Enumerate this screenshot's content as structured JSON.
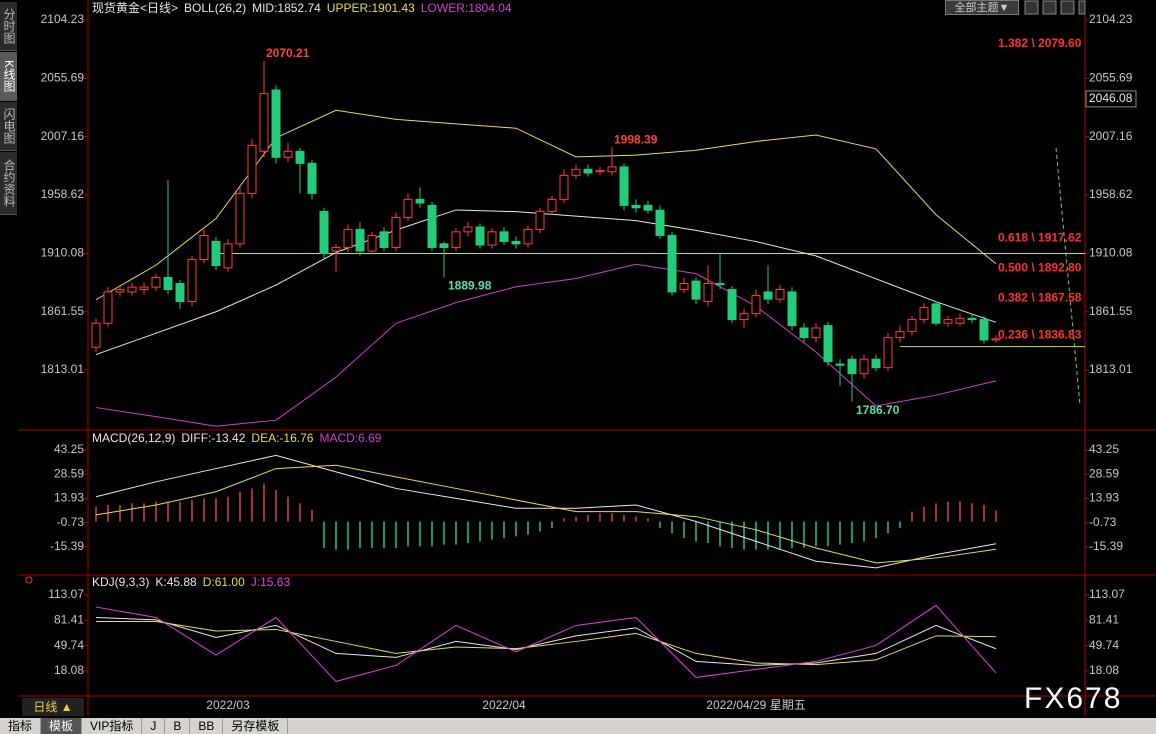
{
  "ui": {
    "sidebar": [
      "分时图",
      "K线图",
      "闪电图",
      "合约资料"
    ],
    "theme_button": "全部主题▼",
    "period": "日线 ▲",
    "tabs": [
      "指标",
      "模板",
      "VIP指标",
      "J",
      "B",
      "BB",
      "另存模板"
    ],
    "watermark": "FX678"
  },
  "chart_data": [
    {
      "type": "candlestick",
      "title": "现货黄金<日线>",
      "subtitle": "BOLL(26,2)",
      "categories": [
        null,
        null,
        null,
        null,
        null,
        null,
        null,
        null,
        null,
        null,
        null,
        "2022/03",
        null,
        null,
        null,
        null,
        null,
        null,
        null,
        null,
        null,
        null,
        null,
        null,
        null,
        null,
        null,
        null,
        null,
        null,
        null,
        null,
        null,
        null,
        "2022/04",
        null,
        null,
        null,
        null,
        null,
        null,
        null,
        null,
        null,
        null,
        null,
        null,
        null,
        null,
        null,
        null,
        null,
        null,
        null,
        null,
        "2022/04/29 星期五",
        null,
        null,
        null,
        null,
        null,
        null,
        null,
        null,
        null,
        null,
        null,
        null,
        null,
        null,
        null,
        null,
        null,
        null,
        null,
        null
      ],
      "open": [
        1832,
        1852,
        1878,
        1878,
        1880,
        1882,
        1890,
        1885,
        1870,
        1905,
        1920,
        1898,
        1918,
        1960,
        1995,
        2046,
        1990,
        1995,
        1985,
        1945,
        1912,
        1915,
        1930,
        1912,
        1928,
        1915,
        1940,
        1955,
        1950,
        1918,
        1915,
        1928,
        1932,
        1917,
        1928,
        1920,
        1918,
        1930,
        1945,
        1955,
        1975,
        1980,
        1978,
        1978,
        1982,
        1950,
        1950,
        1946,
        1925,
        1880,
        1887,
        1870,
        1885,
        1880,
        1855,
        1860,
        1878,
        1872,
        1878,
        1848,
        1840,
        1850,
        1818,
        1822,
        1810,
        1822,
        1815,
        1840,
        1845,
        1855,
        1868,
        1852,
        1852,
        1856,
        1855,
        1838
      ],
      "high": [
        1856,
        1882,
        1884,
        1886,
        1886,
        1893,
        1971,
        1888,
        1908,
        1930,
        1924,
        1922,
        1965,
        2005,
        2070.21,
        2050,
        2002,
        1998,
        1988,
        1948,
        1918,
        1934,
        1936,
        1928,
        1932,
        1944,
        1960,
        1965,
        1953,
        1920,
        1931,
        1936,
        1935,
        1931,
        1932,
        1924,
        1933,
        1948,
        1958,
        1980,
        1984,
        1984,
        1982,
        1998.39,
        1985,
        1955,
        1954,
        1950,
        1928,
        1890,
        1890,
        1900,
        1910,
        1883,
        1864,
        1880,
        1900,
        1884,
        1882,
        1852,
        1852,
        1853,
        1822,
        1825,
        1826,
        1826,
        1844,
        1850,
        1858,
        1869,
        1870,
        1858,
        1860,
        1860,
        1858,
        1842
      ],
      "low": [
        1828,
        1849,
        1874,
        1875,
        1876,
        1879,
        1876,
        1864,
        1866,
        1902,
        1896,
        1895,
        1915,
        1956,
        1990,
        1985,
        1986,
        1960,
        1955,
        1906,
        1895,
        1911,
        1908,
        1909,
        1912,
        1912,
        1937,
        1948,
        1912,
        1889.98,
        1912,
        1924,
        1914,
        1914,
        1917,
        1914,
        1915,
        1927,
        1942,
        1952,
        1972,
        1974,
        1975,
        1975,
        1946,
        1944,
        1943,
        1922,
        1875,
        1877,
        1868,
        1866,
        1880,
        1852,
        1848,
        1857,
        1868,
        1869,
        1846,
        1836,
        1836,
        1816,
        1800,
        1786.7,
        1806,
        1812,
        1812,
        1836,
        1842,
        1852,
        1850,
        1849,
        1850,
        1852,
        1835,
        1836
      ],
      "close": [
        1852,
        1878,
        1880,
        1882,
        1882,
        1890,
        1880,
        1870,
        1905,
        1925,
        1900,
        1918,
        1960,
        2000,
        2043,
        1990,
        1995,
        1985,
        1960,
        1910,
        1915,
        1930,
        1912,
        1925,
        1915,
        1940,
        1955,
        1952,
        1915,
        1915,
        1928,
        1932,
        1917,
        1928,
        1920,
        1918,
        1930,
        1945,
        1955,
        1975,
        1980,
        1977,
        1979,
        1982,
        1950,
        1948,
        1946,
        1925,
        1878,
        1885,
        1872,
        1885,
        1884,
        1855,
        1860,
        1875,
        1872,
        1880,
        1850,
        1840,
        1848,
        1820,
        1817,
        1810,
        1822,
        1815,
        1840,
        1845,
        1855,
        1865,
        1852,
        1855,
        1856,
        1855,
        1838,
        1839
      ],
      "up_color": "#ff3c3c",
      "down_color": "#22cc7a",
      "series": [
        {
          "name": "MID:1852.74",
          "color": "#e8e8e8",
          "x": [
            0,
            5,
            10,
            15,
            20,
            25,
            30,
            35,
            40,
            45,
            50,
            55,
            60,
            65,
            70,
            75
          ],
          "values": [
            1825.9,
            1843.7,
            1861.5,
            1883.7,
            1910.8,
            1929.5,
            1946.2,
            1944.8,
            1941.1,
            1937.3,
            1929.2,
            1919.9,
            1908.0,
            1888.9,
            1869.9,
            1852.74
          ]
        },
        {
          "name": "UPPER:1901.43",
          "color": "#e0e050",
          "x": [
            0,
            5,
            10,
            15,
            20,
            25,
            30,
            35,
            40,
            45,
            50,
            55,
            60,
            65,
            70,
            75
          ],
          "values": [
            1871.5,
            1900.3,
            1939.1,
            2006.2,
            2029.1,
            2021.6,
            2017.8,
            2014.2,
            1990.4,
            1991.8,
            1995.9,
            2003.2,
            2008.6,
            1997.0,
            1942.2,
            1901.43
          ]
        },
        {
          "name": "LOWER:1804.04",
          "color": "#d040d0",
          "x": [
            0,
            5,
            10,
            15,
            20,
            25,
            30,
            35,
            40,
            45,
            50,
            55,
            60,
            65,
            70,
            75
          ],
          "values": [
            1781.8,
            1774.3,
            1766.3,
            1771.3,
            1807.1,
            1851.9,
            1869.1,
            1882.3,
            1889.2,
            1901.0,
            1893.2,
            1866.1,
            1828.0,
            1783.1,
            1792.1,
            1804.04
          ]
        }
      ],
      "high_marks": [
        {
          "value": 2070.21,
          "label": "2070.21"
        },
        {
          "value": 1998.39,
          "label": "1998.39"
        }
      ],
      "low_marks": [
        {
          "value": 1889.98,
          "label": "1889.98"
        },
        {
          "value": 1786.7,
          "label": "1786.70"
        }
      ],
      "fib_levels": [
        {
          "value": 2079.6,
          "label": "1.382 \\ 2079.60"
        },
        {
          "value": 1917.62,
          "label": "0.618 \\ 1917.62"
        },
        {
          "value": 1892.8,
          "label": "0.500 \\ 1892.80"
        },
        {
          "value": 1867.58,
          "label": "0.382 \\ 1867.58"
        },
        {
          "value": 1836.83,
          "label": "0.236 \\ 1836.83"
        }
      ],
      "hlines": [
        1910.0,
        1832.5
      ],
      "hline_color": "#b8e070",
      "price_marker": 2046.08,
      "ylim": [
        1764.8,
        2105.9
      ],
      "yticks": [
        2104.23,
        2055.69,
        2007.16,
        1958.62,
        1910.08,
        1861.55,
        1813.01
      ]
    },
    {
      "type": "macd",
      "title": "MACD(26,12,9)",
      "bars": {
        "name": "MACD:6.69",
        "color": "#d040d0",
        "up_color": "#e04040",
        "down_color": "#2ec27e",
        "values": [
          9,
          10,
          10,
          11,
          11,
          12,
          12,
          12,
          13,
          14,
          14,
          15,
          18,
          20,
          23,
          19,
          15,
          11,
          7,
          -16,
          -17,
          -17,
          -16,
          -16,
          -16,
          -16,
          -15,
          -15,
          -15,
          -14,
          -14,
          -13,
          -12,
          -11,
          -10,
          -9,
          -8,
          -6,
          -4,
          2,
          3,
          4,
          5,
          5,
          4,
          3,
          2,
          -4,
          -7,
          -10,
          -12,
          -13,
          -15,
          -16,
          -17,
          -17,
          -17,
          -17,
          -16,
          -16,
          -15,
          -15,
          -14,
          -13,
          -12,
          -10,
          -7,
          -4,
          6,
          9,
          11,
          12,
          12,
          11,
          10,
          6.69
        ]
      },
      "series": [
        {
          "name": "DIFF:-13.42",
          "color": "#e8e8e8",
          "x": [
            0,
            5,
            10,
            15,
            20,
            25,
            30,
            35,
            40,
            45,
            50,
            55,
            60,
            65,
            70,
            75
          ],
          "values": [
            15,
            24,
            32,
            40,
            30,
            20,
            14,
            8,
            8,
            10,
            0,
            -12,
            -24,
            -28,
            -20,
            -13.42
          ]
        },
        {
          "name": "DEA:-16.76",
          "color": "#e0e050",
          "x": [
            0,
            5,
            10,
            15,
            20,
            25,
            30,
            35,
            40,
            45,
            50,
            55,
            60,
            65,
            70,
            75
          ],
          "values": [
            4,
            10,
            18,
            32,
            34,
            27,
            20,
            13,
            6,
            6,
            3,
            -5,
            -16,
            -25,
            -22,
            -16.76
          ]
        }
      ],
      "ylim": [
        -31.1,
        54.1
      ],
      "yticks": [
        43.25,
        28.59,
        13.93,
        -0.73,
        -15.39
      ]
    },
    {
      "type": "line",
      "title": "KDJ(9,3,3)",
      "series": [
        {
          "name": "K:45.88",
          "color": "#e8e8e8",
          "x": [
            0,
            5,
            10,
            15,
            20,
            25,
            30,
            35,
            40,
            45,
            50,
            55,
            60,
            65,
            70,
            75
          ],
          "values": [
            85,
            82,
            60,
            75,
            40,
            35,
            55,
            45,
            62,
            72,
            30,
            25,
            28,
            40,
            75,
            45.88
          ]
        },
        {
          "name": "D:61.00",
          "color": "#e0e050",
          "x": [
            0,
            5,
            10,
            15,
            20,
            25,
            30,
            35,
            40,
            45,
            50,
            55,
            60,
            65,
            70,
            75
          ],
          "values": [
            80,
            80,
            68,
            70,
            55,
            40,
            48,
            46,
            55,
            65,
            40,
            28,
            26,
            32,
            62,
            61.0
          ]
        },
        {
          "name": "J:15.63",
          "color": "#e040e0",
          "x": [
            0,
            5,
            10,
            15,
            20,
            25,
            30,
            35,
            40,
            45,
            50,
            55,
            60,
            65,
            70,
            75
          ],
          "values": [
            98,
            85,
            38,
            85,
            5,
            25,
            75,
            42,
            75,
            85,
            10,
            20,
            30,
            50,
            100,
            15.63
          ]
        }
      ],
      "ylim": [
        -12.0,
        135.6
      ],
      "yticks": [
        113.07,
        81.41,
        49.74,
        18.08
      ]
    }
  ]
}
